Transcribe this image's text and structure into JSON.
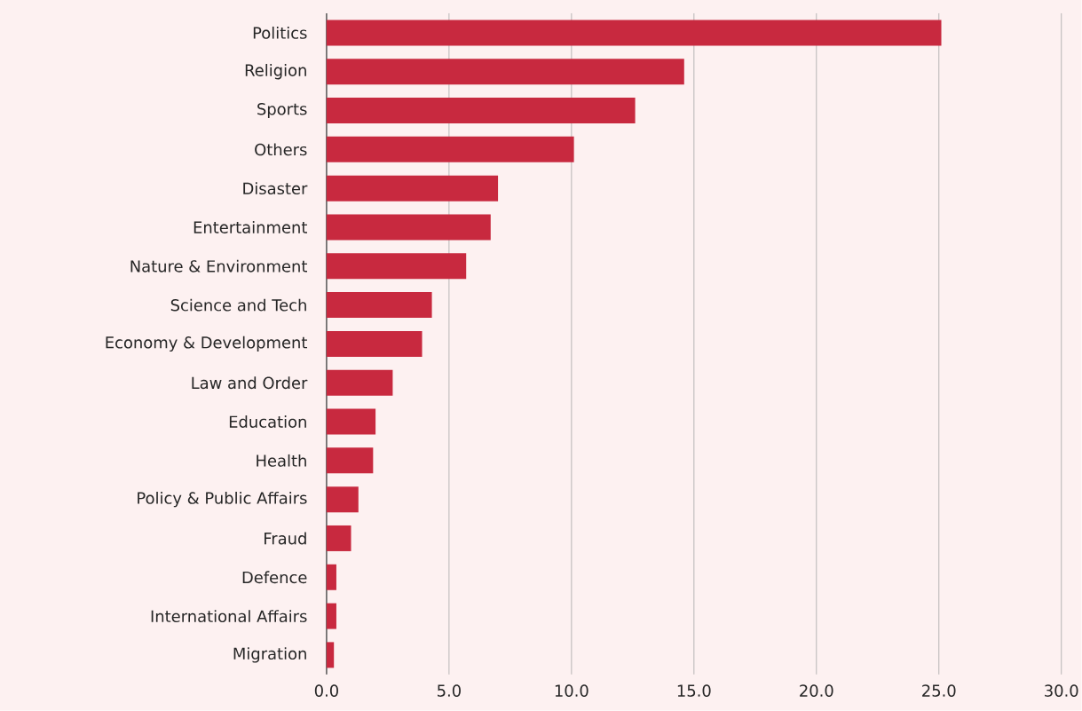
{
  "chart_data": {
    "type": "bar",
    "orientation": "horizontal",
    "categories": [
      "Politics",
      "Religion",
      "Sports",
      "Others",
      "Disaster",
      "Entertainment",
      "Nature & Environment",
      "Science and Tech",
      "Economy & Development",
      "Law and Order",
      "Education",
      "Health",
      "Policy & Public Affairs",
      "Fraud",
      "Defence",
      "International Affairs",
      "Migration"
    ],
    "values": [
      25.1,
      14.6,
      12.6,
      10.1,
      7.0,
      6.7,
      5.7,
      4.3,
      3.9,
      2.7,
      2.0,
      1.9,
      1.3,
      1.0,
      0.4,
      0.4,
      0.3
    ],
    "color": "#c8293f",
    "xlim": [
      0,
      30
    ],
    "xticks": [
      {
        "value": 0,
        "label": "0.0"
      },
      {
        "value": 5,
        "label": "5.0"
      },
      {
        "value": 10,
        "label": "10.0"
      },
      {
        "value": 15,
        "label": "15.0"
      },
      {
        "value": 20,
        "label": "20.0"
      },
      {
        "value": 25,
        "label": "25.0"
      },
      {
        "value": 30,
        "label": "30.0"
      }
    ],
    "grid": "x"
  }
}
